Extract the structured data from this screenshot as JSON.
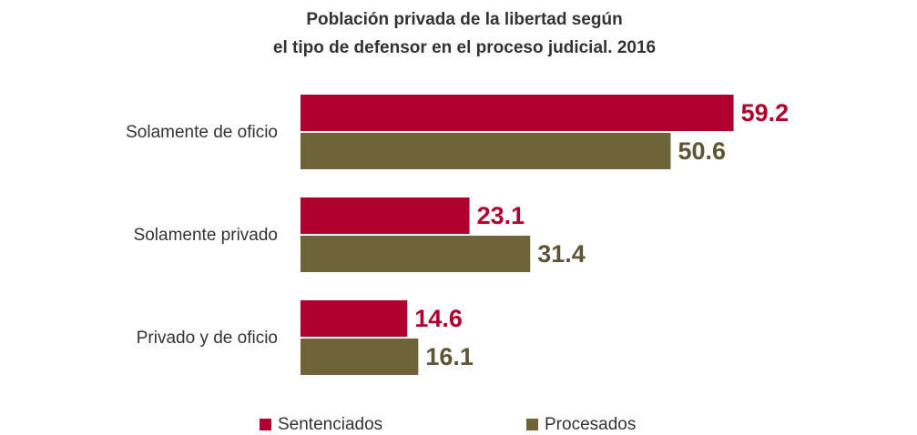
{
  "chart_data": {
    "type": "hbar",
    "title": [
      "Población privada de la libertad según",
      "el tipo de defensor en el proceso judicial. 2016"
    ],
    "categories": [
      "Solamente de oficio",
      "Solamente privado",
      "Privado y de oficio"
    ],
    "series": [
      {
        "name": "Sentenciados",
        "color": "#b0002e",
        "values": [
          59.2,
          23.1,
          14.6
        ]
      },
      {
        "name": "Procesados",
        "color": "#6e6339",
        "values": [
          50.6,
          31.4,
          16.1
        ]
      }
    ],
    "xlim": [
      0,
      60
    ],
    "legend": "bottom"
  }
}
